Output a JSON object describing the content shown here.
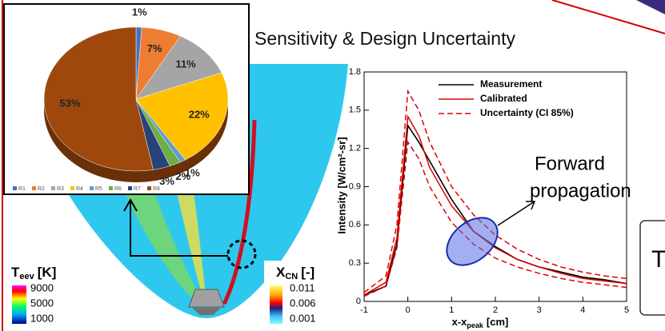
{
  "title": "Sensitivity & Design Uncertainty",
  "annotation": [
    "Forward",
    "propagation"
  ],
  "cutoff_box_text": "T",
  "field": {
    "temperature_bar": {
      "label": "T",
      "label_sub": "eev",
      "unit": "[K]",
      "ticks": [
        9000,
        5000,
        1000
      ]
    },
    "species_bar": {
      "label": "X",
      "label_sub": "CN",
      "unit": "[-]",
      "ticks": [
        0.011,
        0.006,
        0.001
      ]
    }
  },
  "chart_data": [
    {
      "type": "pie",
      "categories": [
        "R1",
        "R2",
        "R3",
        "R4",
        "R5",
        "R6",
        "R7",
        "R8"
      ],
      "values": [
        1,
        7,
        11,
        22,
        1,
        2,
        3,
        53
      ],
      "value_labels": [
        "1%",
        "7%",
        "11%",
        "22%",
        "1%",
        "2%",
        "3%",
        "53%"
      ],
      "colors": [
        "#4472c4",
        "#ed7d31",
        "#a5a5a5",
        "#ffc000",
        "#5b9bd5",
        "#70ad47",
        "#264478",
        "#9e480e"
      ],
      "legend": "bottom"
    },
    {
      "type": "line",
      "x": [
        -1,
        -0.5,
        -0.25,
        0,
        0.25,
        0.5,
        1,
        1.5,
        2,
        2.5,
        3,
        3.5,
        4,
        4.5,
        5
      ],
      "series": [
        {
          "name": "Measurement",
          "color": "#000000",
          "values": [
            0.05,
            0.12,
            0.45,
            1.38,
            1.25,
            1.1,
            0.8,
            0.55,
            0.43,
            0.33,
            0.27,
            0.23,
            0.19,
            0.17,
            0.14
          ]
        },
        {
          "name": "Calibrated",
          "color": "#e00000",
          "values": [
            0.05,
            0.15,
            0.5,
            1.45,
            1.3,
            1.05,
            0.75,
            0.55,
            0.42,
            0.33,
            0.27,
            0.22,
            0.18,
            0.16,
            0.14
          ]
        },
        {
          "name": "Uncertainty (CI 85%)",
          "color": "#e00000",
          "dash": true,
          "lower": [
            0.04,
            0.12,
            0.42,
            1.25,
            1.12,
            0.9,
            0.62,
            0.45,
            0.34,
            0.27,
            0.22,
            0.18,
            0.15,
            0.13,
            0.11
          ],
          "upper": [
            0.07,
            0.2,
            0.6,
            1.65,
            1.5,
            1.25,
            0.9,
            0.68,
            0.52,
            0.41,
            0.33,
            0.27,
            0.23,
            0.2,
            0.18
          ]
        }
      ],
      "xlim": [
        -1,
        5
      ],
      "ylim": [
        0,
        1.8
      ],
      "xticks": [
        -1,
        0,
        1,
        2,
        3,
        4,
        5
      ],
      "yticks": [
        0,
        0.3,
        0.6,
        0.9,
        1.2,
        1.5,
        1.8
      ],
      "y_label": "Intensity [W/cm²-sr]",
      "x_label": "x-x",
      "x_label_sub": "peak",
      "x_label_unit": "[cm]",
      "legend": "upper right"
    }
  ]
}
